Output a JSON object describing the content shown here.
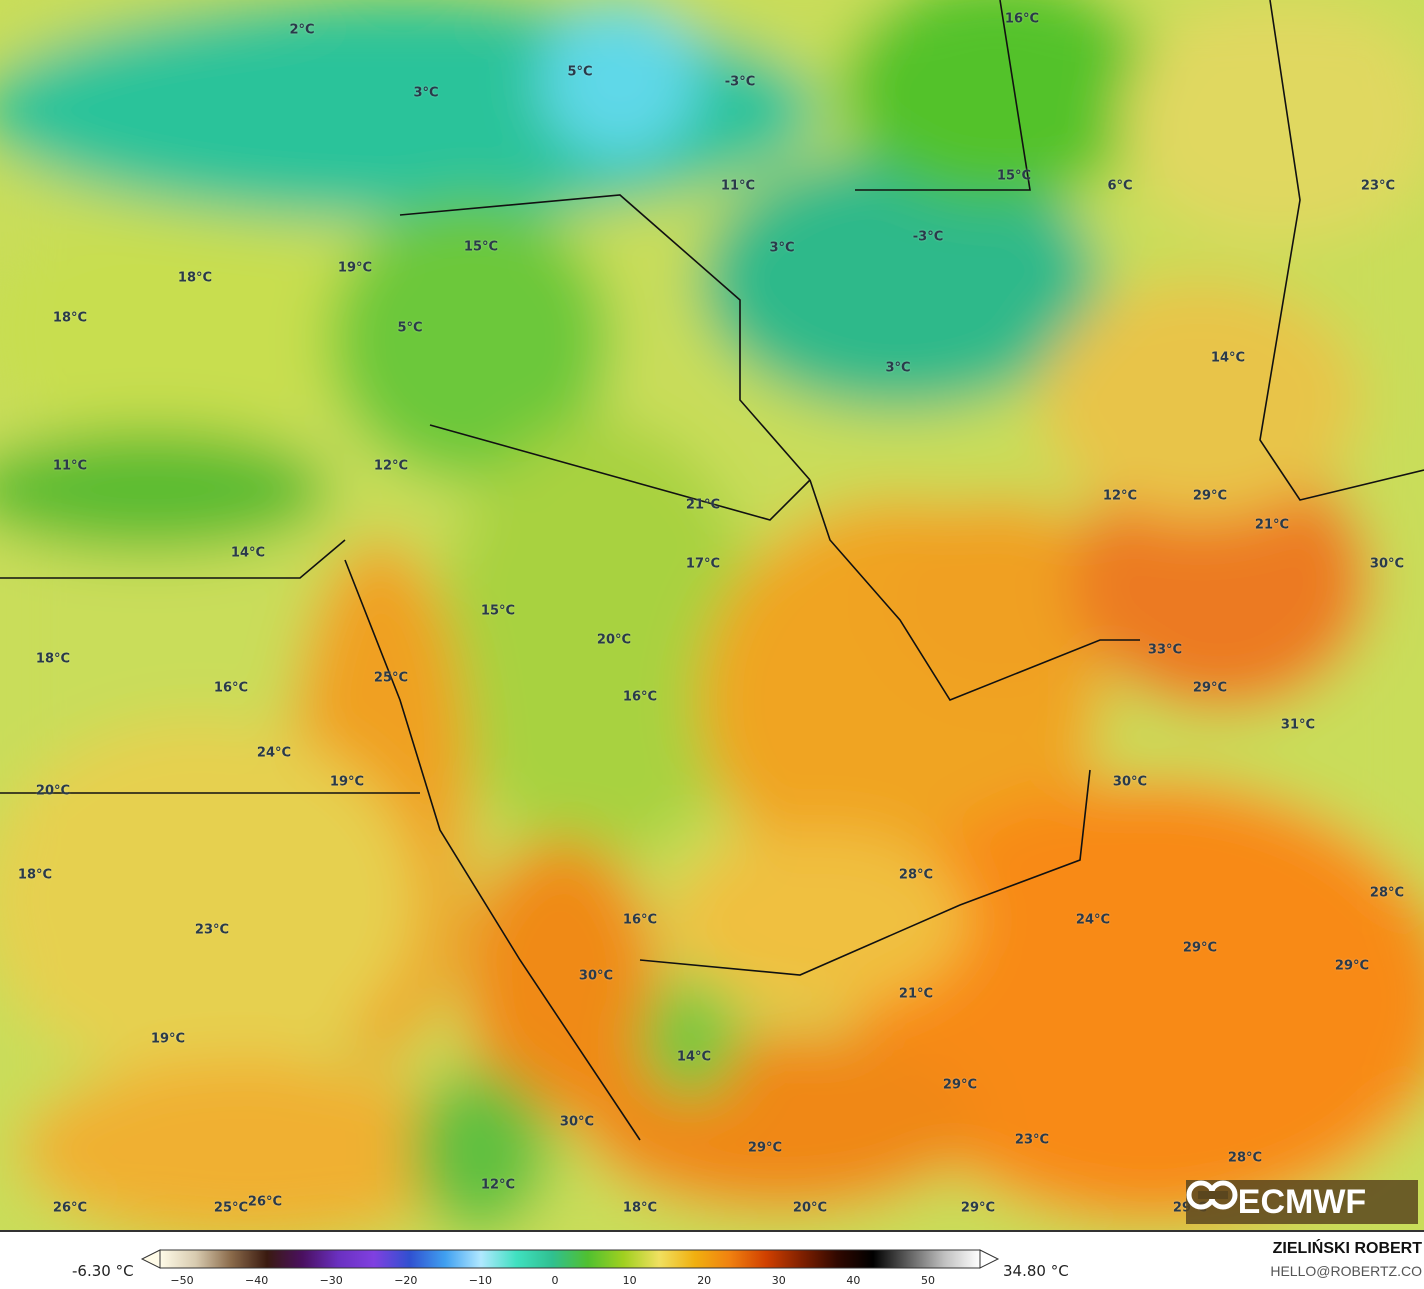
{
  "map": {
    "variable": "2m temperature",
    "labels": [
      "2°C",
      "5°C",
      "-3°C",
      "16°C",
      "3°C",
      "11°C",
      "15°C",
      "6°C",
      "23°C",
      "3°C",
      "-3°C",
      "15°C",
      "18°C",
      "19°C",
      "18°C",
      "5°C",
      "14°C",
      "3°C",
      "11°C",
      "12°C",
      "12°C",
      "29°C",
      "21°C",
      "21°C",
      "14°C",
      "17°C",
      "30°C",
      "15°C",
      "20°C",
      "33°C",
      "18°C",
      "16°C",
      "25°C",
      "16°C",
      "29°C",
      "31°C",
      "24°C",
      "19°C",
      "30°C",
      "20°C",
      "18°C",
      "28°C",
      "28°C",
      "16°C",
      "24°C",
      "23°C",
      "29°C",
      "29°C",
      "30°C",
      "21°C",
      "19°C",
      "14°C",
      "29°C",
      "30°C",
      "23°C",
      "29°C",
      "28°C",
      "12°C",
      "26°C",
      "25°C",
      "26°C",
      "18°C",
      "20°C",
      "29°C",
      "29°C"
    ]
  },
  "logo": {
    "text": "ECMWF"
  },
  "legend": {
    "min_label": "-6.30 °C",
    "max_label": "34.80 °C",
    "ticks": [
      "−50",
      "−40",
      "−30",
      "−20",
      "−10",
      "0",
      "10",
      "20",
      "30",
      "40",
      "50"
    ],
    "colors": [
      "#fffbe8",
      "#d8cbb0",
      "#8a6a4a",
      "#3a1a10",
      "#4a1060",
      "#6a30c0",
      "#8040e0",
      "#3050d0",
      "#40a0f0",
      "#b0e8ff",
      "#40e0c0",
      "#30c090",
      "#50c030",
      "#a0d020",
      "#f0e060",
      "#f0b010",
      "#f08010",
      "#d04000",
      "#802000",
      "#300800",
      "#000000",
      "#606060",
      "#c0c0c0",
      "#ffffff"
    ]
  },
  "credits": {
    "author": "ZIELIŃSKI ROBERT",
    "email": "HELLO@ROBERTZ.CO"
  }
}
